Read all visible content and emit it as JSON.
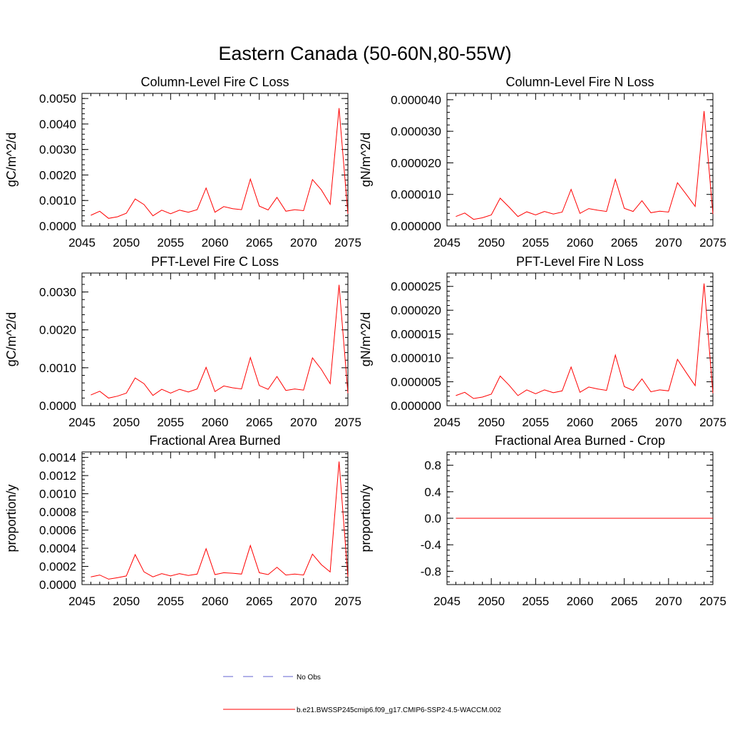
{
  "figure": {
    "title": "Eastern Canada (50-60N,80-55W)"
  },
  "legend": {
    "entries": [
      {
        "label": "No Obs",
        "color": "#6060d0",
        "style": "dashed"
      },
      {
        "label": "b.e21.BWSSP245cmip6.f09_g17.CMIP6-SSP2-4.5-WACCM.002",
        "color": "#ff0000",
        "style": "solid"
      }
    ]
  },
  "colors": {
    "series": "#ff0000",
    "obs": "#6060d0",
    "axes": "#000000"
  },
  "chart_data": [
    {
      "type": "line",
      "title": "Column-Level Fire C Loss",
      "ylabel": "gC/m^2/d",
      "xlabel": "",
      "xlim": [
        2045,
        2075
      ],
      "ylim": [
        0,
        0.0052
      ],
      "xticks": [
        "2045",
        "2050",
        "2055",
        "2060",
        "2065",
        "2070",
        "2075"
      ],
      "yticks": [
        {
          "value": 0,
          "label": "0.0000"
        },
        {
          "value": 0.001,
          "label": "0.0010"
        },
        {
          "value": 0.002,
          "label": "0.0020"
        },
        {
          "value": 0.003,
          "label": "0.0030"
        },
        {
          "value": 0.004,
          "label": "0.0040"
        },
        {
          "value": 0.005,
          "label": "0.0050"
        }
      ],
      "x": [
        2046,
        2047,
        2048,
        2049,
        2050,
        2051,
        2052,
        2053,
        2054,
        2055,
        2056,
        2057,
        2058,
        2059,
        2060,
        2061,
        2062,
        2063,
        2064,
        2065,
        2066,
        2067,
        2068,
        2069,
        2070,
        2071,
        2072,
        2073,
        2074,
        2075
      ],
      "series": [
        {
          "values": [
            0.00042,
            0.00058,
            0.0003,
            0.00036,
            0.0005,
            0.00106,
            0.00084,
            0.0004,
            0.00062,
            0.00048,
            0.00062,
            0.00054,
            0.00064,
            0.00149,
            0.00054,
            0.00076,
            0.00068,
            0.00064,
            0.00184,
            0.00078,
            0.00063,
            0.00112,
            0.00058,
            0.00064,
            0.0006,
            0.00182,
            0.00142,
            0.00085,
            0.00462,
            0.00048
          ]
        }
      ]
    },
    {
      "type": "line",
      "title": "Column-Level Fire N Loss",
      "ylabel": "gN/m^2/d",
      "xlabel": "",
      "xlim": [
        2045,
        2075
      ],
      "ylim": [
        0,
        4.2e-05
      ],
      "xticks": [
        "2045",
        "2050",
        "2055",
        "2060",
        "2065",
        "2070",
        "2075"
      ],
      "yticks": [
        {
          "value": 0,
          "label": "0.000000"
        },
        {
          "value": 1e-05,
          "label": "0.000010"
        },
        {
          "value": 2e-05,
          "label": "0.000020"
        },
        {
          "value": 3e-05,
          "label": "0.000030"
        },
        {
          "value": 4e-05,
          "label": "0.000040"
        }
      ],
      "x": [
        2046,
        2047,
        2048,
        2049,
        2050,
        2051,
        2052,
        2053,
        2054,
        2055,
        2056,
        2057,
        2058,
        2059,
        2060,
        2061,
        2062,
        2063,
        2064,
        2065,
        2066,
        2067,
        2068,
        2069,
        2070,
        2071,
        2072,
        2073,
        2074,
        2075
      ],
      "series": [
        {
          "values": [
            3e-06,
            4.1e-06,
            2.1e-06,
            2.6e-06,
            3.5e-06,
            8.8e-06,
            6e-06,
            3e-06,
            4.5e-06,
            3.5e-06,
            4.6e-06,
            3.8e-06,
            4.4e-06,
            1.16e-05,
            4e-06,
            5.5e-06,
            5e-06,
            4.6e-06,
            1.48e-05,
            5.6e-06,
            4.6e-06,
            8e-06,
            4.2e-06,
            4.7e-06,
            4.4e-06,
            1.37e-05,
            1e-05,
            6.2e-06,
            3.64e-05,
            3.8e-06
          ]
        }
      ]
    },
    {
      "type": "line",
      "title": "PFT-Level Fire C Loss",
      "ylabel": "gC/m^2/d",
      "xlabel": "",
      "xlim": [
        2045,
        2075
      ],
      "ylim": [
        0,
        0.0035
      ],
      "xticks": [
        "2045",
        "2050",
        "2055",
        "2060",
        "2065",
        "2070",
        "2075"
      ],
      "yticks": [
        {
          "value": 0,
          "label": "0.0000"
        },
        {
          "value": 0.001,
          "label": "0.0010"
        },
        {
          "value": 0.002,
          "label": "0.0020"
        },
        {
          "value": 0.003,
          "label": "0.0030"
        }
      ],
      "x": [
        2046,
        2047,
        2048,
        2049,
        2050,
        2051,
        2052,
        2053,
        2054,
        2055,
        2056,
        2057,
        2058,
        2059,
        2060,
        2061,
        2062,
        2063,
        2064,
        2065,
        2066,
        2067,
        2068,
        2069,
        2070,
        2071,
        2072,
        2073,
        2074,
        2075
      ],
      "series": [
        {
          "values": [
            0.00028,
            0.00038,
            0.0002,
            0.00025,
            0.00033,
            0.00073,
            0.00058,
            0.00027,
            0.00043,
            0.00033,
            0.00043,
            0.00036,
            0.00044,
            0.00101,
            0.00037,
            0.00052,
            0.00047,
            0.00044,
            0.00127,
            0.00053,
            0.00043,
            0.00077,
            0.0004,
            0.00044,
            0.00041,
            0.00126,
            0.00096,
            0.00058,
            0.00319,
            0.00033
          ]
        }
      ]
    },
    {
      "type": "line",
      "title": "PFT-Level Fire N Loss",
      "ylabel": "gN/m^2/d",
      "xlabel": "",
      "xlim": [
        2045,
        2075
      ],
      "ylim": [
        0,
        2.78e-05
      ],
      "xticks": [
        "2045",
        "2050",
        "2055",
        "2060",
        "2065",
        "2070",
        "2075"
      ],
      "yticks": [
        {
          "value": 0,
          "label": "0.000000"
        },
        {
          "value": 5e-06,
          "label": "0.000005"
        },
        {
          "value": 1e-05,
          "label": "0.000010"
        },
        {
          "value": 1.5e-05,
          "label": "0.000015"
        },
        {
          "value": 2e-05,
          "label": "0.000020"
        },
        {
          "value": 2.5e-05,
          "label": "0.000025"
        }
      ],
      "x": [
        2046,
        2047,
        2048,
        2049,
        2050,
        2051,
        2052,
        2053,
        2054,
        2055,
        2056,
        2057,
        2058,
        2059,
        2060,
        2061,
        2062,
        2063,
        2064,
        2065,
        2066,
        2067,
        2068,
        2069,
        2070,
        2071,
        2072,
        2073,
        2074,
        2075
      ],
      "series": [
        {
          "values": [
            2.1e-06,
            2.8e-06,
            1.5e-06,
            1.8e-06,
            2.4e-06,
            6.2e-06,
            4.3e-06,
            2.1e-06,
            3.3e-06,
            2.5e-06,
            3.3e-06,
            2.7e-06,
            3.1e-06,
            8.1e-06,
            2.8e-06,
            3.9e-06,
            3.5e-06,
            3.2e-06,
            1.06e-05,
            4e-06,
            3.2e-06,
            5.6e-06,
            2.9e-06,
            3.3e-06,
            3.1e-06,
            9.7e-06,
            6.9e-06,
            4.2e-06,
            2.56e-05,
            2.6e-06
          ]
        }
      ]
    },
    {
      "type": "line",
      "title": "Fractional Area Burned",
      "ylabel": "proportion/y",
      "xlabel": "",
      "xlim": [
        2045,
        2075
      ],
      "ylim": [
        0,
        0.00146
      ],
      "xticks": [
        "2045",
        "2050",
        "2055",
        "2060",
        "2065",
        "2070",
        "2075"
      ],
      "yticks": [
        {
          "value": 0,
          "label": "0.0000"
        },
        {
          "value": 0.0002,
          "label": "0.0002"
        },
        {
          "value": 0.0004,
          "label": "0.0004"
        },
        {
          "value": 0.0006,
          "label": "0.0006"
        },
        {
          "value": 0.0008,
          "label": "0.0008"
        },
        {
          "value": 0.001,
          "label": "0.0010"
        },
        {
          "value": 0.0012,
          "label": "0.0012"
        },
        {
          "value": 0.0014,
          "label": "0.0014"
        }
      ],
      "x": [
        2046,
        2047,
        2048,
        2049,
        2050,
        2051,
        2052,
        2053,
        2054,
        2055,
        2056,
        2057,
        2058,
        2059,
        2060,
        2061,
        2062,
        2063,
        2064,
        2065,
        2066,
        2067,
        2068,
        2069,
        2070,
        2071,
        2072,
        2073,
        2074,
        2075
      ],
      "series": [
        {
          "values": [
            8.5e-05,
            0.000105,
            6e-05,
            7.5e-05,
            9.5e-05,
            0.00033,
            0.00014,
            8.5e-05,
            0.00012,
            9.5e-05,
            0.00012,
            0.0001,
            0.000115,
            0.000395,
            0.00011,
            0.00013,
            0.000125,
            0.000115,
            0.00043,
            0.00013,
            0.00011,
            0.00019,
            0.000105,
            0.000115,
            0.000105,
            0.000335,
            0.00022,
            0.00014,
            0.001355,
            8.5e-05
          ]
        }
      ]
    },
    {
      "type": "line",
      "title": "Fractional Area Burned - Crop",
      "ylabel": "proportion/y",
      "xlabel": "",
      "xlim": [
        2045,
        2075
      ],
      "ylim": [
        -1.0,
        1.0
      ],
      "xticks": [
        "2045",
        "2050",
        "2055",
        "2060",
        "2065",
        "2070",
        "2075"
      ],
      "yticks": [
        {
          "value": -0.8,
          "label": "-0.8"
        },
        {
          "value": -0.4,
          "label": "-0.4"
        },
        {
          "value": 0,
          "label": "0.0"
        },
        {
          "value": 0.4,
          "label": "0.4"
        },
        {
          "value": 0.8,
          "label": "0.8"
        }
      ],
      "x": [
        2046,
        2047,
        2048,
        2049,
        2050,
        2051,
        2052,
        2053,
        2054,
        2055,
        2056,
        2057,
        2058,
        2059,
        2060,
        2061,
        2062,
        2063,
        2064,
        2065,
        2066,
        2067,
        2068,
        2069,
        2070,
        2071,
        2072,
        2073,
        2074,
        2075
      ],
      "series": [
        {
          "values": [
            0,
            0,
            0,
            0,
            0,
            0,
            0,
            0,
            0,
            0,
            0,
            0,
            0,
            0,
            0,
            0,
            0,
            0,
            0,
            0,
            0,
            0,
            0,
            0,
            0,
            0,
            0,
            0,
            0,
            0
          ]
        }
      ]
    }
  ]
}
